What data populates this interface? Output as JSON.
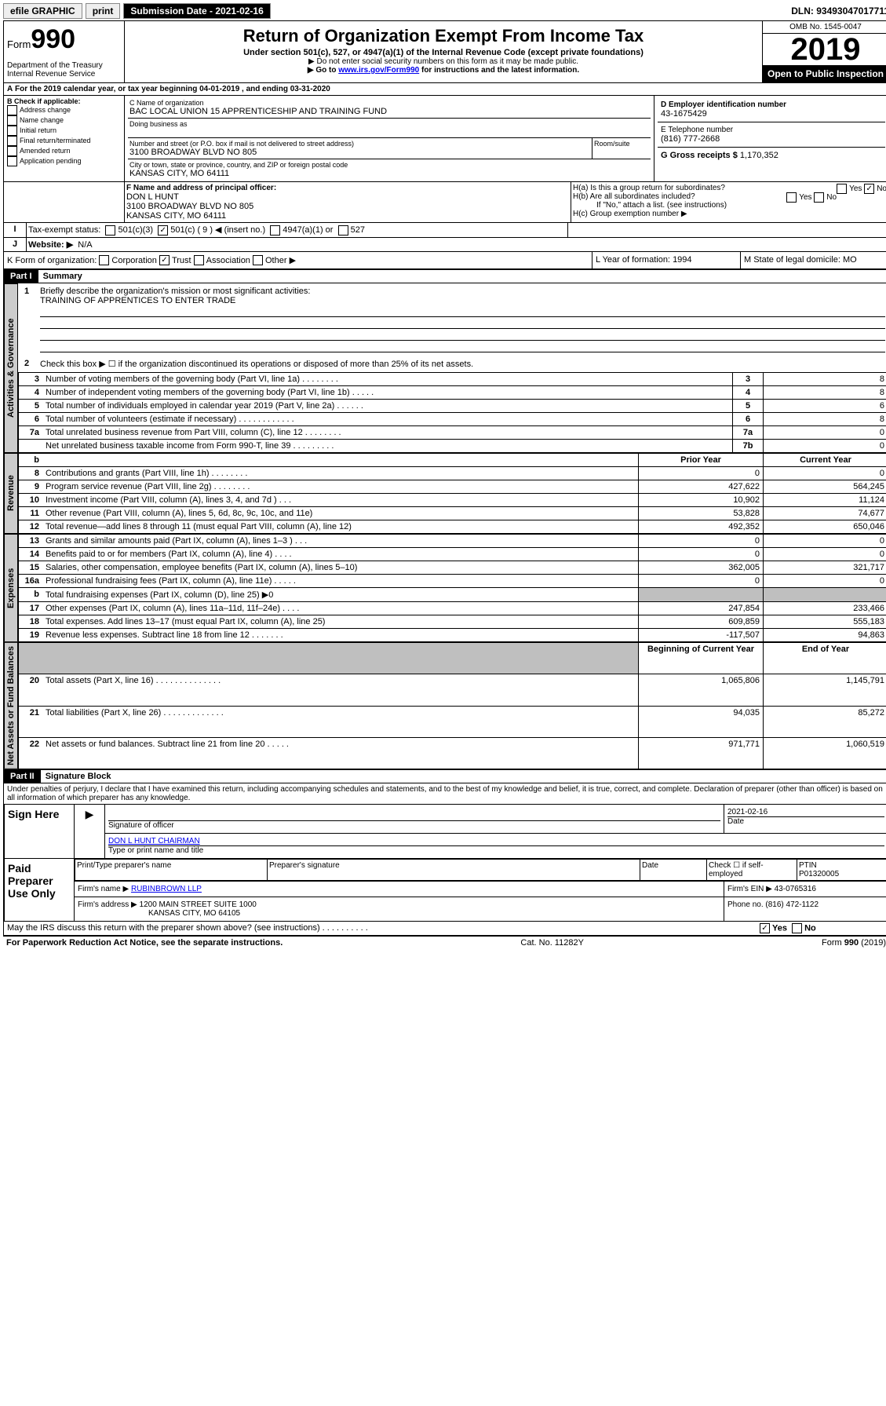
{
  "topbar": {
    "efile": "efile GRAPHIC",
    "print": "print",
    "subdate_label": "Submission Date - 2021-02-16",
    "dln": "DLN: 93493047017711"
  },
  "header": {
    "form_label": "Form",
    "form_no": "990",
    "dept": "Department of the Treasury\nInternal Revenue Service",
    "title": "Return of Organization Exempt From Income Tax",
    "sub": "Under section 501(c), 527, or 4947(a)(1) of the Internal Revenue Code (except private foundations)",
    "note1": "▶ Do not enter social security numbers on this form as it may be made public.",
    "note2_pre": "▶ Go to ",
    "note2_link": "www.irs.gov/Form990",
    "note2_post": " for instructions and the latest information.",
    "omb": "OMB No. 1545-0047",
    "year": "2019",
    "open": "Open to Public Inspection"
  },
  "lineA": "For the 2019 calendar year, or tax year beginning 04-01-2019     , and ending 03-31-2020",
  "boxB": {
    "hdr": "B Check if applicable:",
    "items": [
      "Address change",
      "Name change",
      "Initial return",
      "Final return/terminated",
      "Amended return",
      "Application pending"
    ]
  },
  "boxC": {
    "name_lbl": "C Name of organization",
    "name": "BAC LOCAL UNION 15 APPRENTICESHIP AND TRAINING FUND",
    "dba_lbl": "Doing business as",
    "street_lbl": "Number and street (or P.O. box if mail is not delivered to street address)",
    "room_lbl": "Room/suite",
    "street": "3100 BROADWAY BLVD NO 805",
    "city_lbl": "City or town, state or province, country, and ZIP or foreign postal code",
    "city": "KANSAS CITY, MO  64111"
  },
  "boxD": {
    "lbl": "D Employer identification number",
    "val": "43-1675429"
  },
  "boxE": {
    "lbl": "E Telephone number",
    "val": "(816) 777-2668"
  },
  "boxG": {
    "lbl": "G Gross receipts $",
    "val": "1,170,352"
  },
  "boxF": {
    "lbl": "F Name and address of principal officer:",
    "name": "DON L HUNT",
    "addr1": "3100 BROADWAY BLVD NO 805",
    "addr2": "KANSAS CITY, MO  64111"
  },
  "boxH": {
    "a": "H(a)  Is this a group return for subordinates?",
    "b": "H(b)  Are all subordinates included?",
    "b_note": "If \"No,\" attach a list. (see instructions)",
    "c": "H(c)  Group exemption number ▶",
    "yes": "Yes",
    "no": "No"
  },
  "boxI": {
    "lbl": "Tax-exempt status:",
    "c3": "501(c)(3)",
    "c": "501(c) ( 9 ) ◀ (insert no.)",
    "a1": "4947(a)(1) or",
    "s527": "527"
  },
  "boxJ": {
    "lbl": "Website: ▶",
    "val": "N/A"
  },
  "boxK": {
    "lbl": "K Form of organization:",
    "corp": "Corporation",
    "trust": "Trust",
    "assoc": "Association",
    "other": "Other ▶"
  },
  "boxL": {
    "lbl": "L Year of formation:",
    "val": "1994"
  },
  "boxM": {
    "lbl": "M State of legal domicile:",
    "val": "MO"
  },
  "part1": {
    "hdr": "Part I",
    "title": "Summary"
  },
  "summary": {
    "l1": "Briefly describe the organization's mission or most significant activities:",
    "l1_val": "TRAINING OF APPRENTICES TO ENTER TRADE",
    "l2": "Check this box ▶ ☐  if the organization discontinued its operations or disposed of more than 25% of its net assets.",
    "rows_gov": [
      {
        "n": "3",
        "t": "Number of voting members of the governing body (Part VI, line 1a)   .    .    .    .    .    .    .    .",
        "b": "3",
        "v": "8"
      },
      {
        "n": "4",
        "t": "Number of independent voting members of the governing body (Part VI, line 1b)   .    .    .    .    .",
        "b": "4",
        "v": "8"
      },
      {
        "n": "5",
        "t": "Total number of individuals employed in calendar year 2019 (Part V, line 2a)   .    .    .    .    .    .",
        "b": "5",
        "v": "6"
      },
      {
        "n": "6",
        "t": "Total number of volunteers (estimate if necessary)   .    .    .    .    .    .    .    .    .    .    .    .",
        "b": "6",
        "v": "8"
      },
      {
        "n": "7a",
        "t": "Total unrelated business revenue from Part VIII, column (C), line 12   .    .    .    .    .    .    .    .",
        "b": "7a",
        "v": "0"
      },
      {
        "n": "",
        "t": "Net unrelated business taxable income from Form 990-T, line 39   .    .    .    .    .    .    .    .    .",
        "b": "7b",
        "v": "0"
      }
    ],
    "col_prior": "Prior Year",
    "col_current": "Current Year",
    "rows_rev": [
      {
        "n": "8",
        "t": "Contributions and grants (Part VIII, line 1h)   .    .    .    .    .    .    .    .",
        "p": "0",
        "c": "0"
      },
      {
        "n": "9",
        "t": "Program service revenue (Part VIII, line 2g)   .    .    .    .    .    .    .    .",
        "p": "427,622",
        "c": "564,245"
      },
      {
        "n": "10",
        "t": "Investment income (Part VIII, column (A), lines 3, 4, and 7d )   .    .    .",
        "p": "10,902",
        "c": "11,124"
      },
      {
        "n": "11",
        "t": "Other revenue (Part VIII, column (A), lines 5, 6d, 8c, 9c, 10c, and 11e)",
        "p": "53,828",
        "c": "74,677"
      },
      {
        "n": "12",
        "t": "Total revenue—add lines 8 through 11 (must equal Part VIII, column (A), line 12)",
        "p": "492,352",
        "c": "650,046"
      }
    ],
    "rows_exp": [
      {
        "n": "13",
        "t": "Grants and similar amounts paid (Part IX, column (A), lines 1–3 )   .    .    .",
        "p": "0",
        "c": "0"
      },
      {
        "n": "14",
        "t": "Benefits paid to or for members (Part IX, column (A), line 4)   .    .    .    .",
        "p": "0",
        "c": "0"
      },
      {
        "n": "15",
        "t": "Salaries, other compensation, employee benefits (Part IX, column (A), lines 5–10)",
        "p": "362,005",
        "c": "321,717"
      },
      {
        "n": "16a",
        "t": "Professional fundraising fees (Part IX, column (A), line 11e)   .    .    .    .    .",
        "p": "0",
        "c": "0"
      },
      {
        "n": "b",
        "t": "Total fundraising expenses (Part IX, column (D), line 25) ▶0",
        "p": "",
        "c": "",
        "gray": true
      },
      {
        "n": "17",
        "t": "Other expenses (Part IX, column (A), lines 11a–11d, 11f–24e)   .   .    .    .",
        "p": "247,854",
        "c": "233,466"
      },
      {
        "n": "18",
        "t": "Total expenses. Add lines 13–17 (must equal Part IX, column (A), line 25)",
        "p": "609,859",
        "c": "555,183"
      },
      {
        "n": "19",
        "t": "Revenue less expenses. Subtract line 18 from line 12   .    .    .    .    .    .    .",
        "p": "-117,507",
        "c": "94,863"
      }
    ],
    "col_begin": "Beginning of Current Year",
    "col_end": "End of Year",
    "rows_net": [
      {
        "n": "20",
        "t": "Total assets (Part X, line 16)   .    .    .    .    .    .    .    .    .    .    .    .    .    .",
        "p": "1,065,806",
        "c": "1,145,791"
      },
      {
        "n": "21",
        "t": "Total liabilities (Part X, line 26)   .    .    .    .    .    .    .    .    .    .    .    .    .",
        "p": "94,035",
        "c": "85,272"
      },
      {
        "n": "22",
        "t": "Net assets or fund balances. Subtract line 21 from line 20   .    .    .    .    .",
        "p": "971,771",
        "c": "1,060,519"
      }
    ],
    "tab_gov": "Activities & Governance",
    "tab_rev": "Revenue",
    "tab_exp": "Expenses",
    "tab_net": "Net Assets or Fund Balances"
  },
  "part2": {
    "hdr": "Part II",
    "title": "Signature Block",
    "decl": "Under penalties of perjury, I declare that I have examined this return, including accompanying schedules and statements, and to the best of my knowledge and belief, it is true, correct, and complete. Declaration of preparer (other than officer) is based on all information of which preparer has any knowledge."
  },
  "sign": {
    "here": "Sign Here",
    "sig_officer": "Signature of officer",
    "date_lbl": "Date",
    "date": "2021-02-16",
    "name": "DON L HUNT  CHAIRMAN",
    "name_lbl": "Type or print name and title"
  },
  "paid": {
    "hdr": "Paid Preparer Use Only",
    "prep_name_lbl": "Print/Type preparer's name",
    "prep_sig_lbl": "Preparer's signature",
    "date_lbl": "Date",
    "check_lbl": "Check ☐ if self-employed",
    "ptin_lbl": "PTIN",
    "ptin": "P01320005",
    "firm_name_lbl": "Firm's name    ▶",
    "firm_name": "RUBINBROWN LLP",
    "firm_ein_lbl": "Firm's EIN ▶",
    "firm_ein": "43-0765316",
    "firm_addr_lbl": "Firm's address ▶",
    "firm_addr": "1200 MAIN STREET SUITE 1000",
    "firm_city": "KANSAS CITY, MO  64105",
    "phone_lbl": "Phone no.",
    "phone": "(816) 472-1122"
  },
  "discuss": "May the IRS discuss this return with the preparer shown above? (see instructions)    .    .    .    .    .    .    .    .    .    .",
  "footer": {
    "l": "For Paperwork Reduction Act Notice, see the separate instructions.",
    "c": "Cat. No. 11282Y",
    "r": "Form 990 (2019)"
  }
}
